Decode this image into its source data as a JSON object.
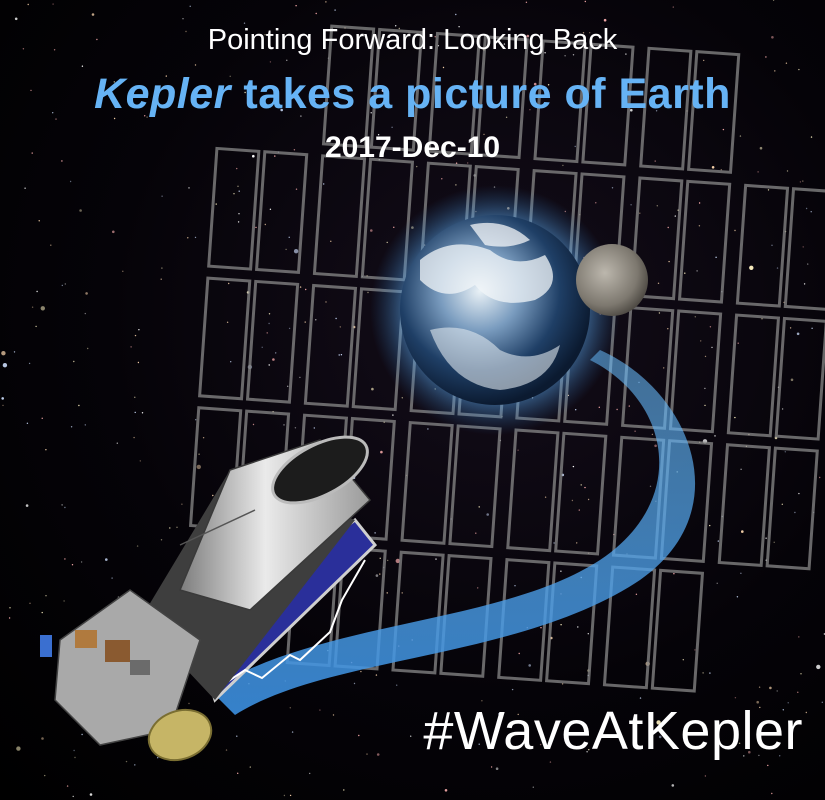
{
  "poster": {
    "subtitle": "Pointing Forward: Looking Back",
    "headline_name": "Kepler",
    "headline_rest": " takes a picture of Earth",
    "date": "2017-Dec-10",
    "hashtag": "#WaveAtKepler"
  },
  "colors": {
    "headline": "#66b3f5",
    "beam": "#4aa8ff",
    "sky": "#050308",
    "ccd_frame": "#8a8a8a"
  }
}
